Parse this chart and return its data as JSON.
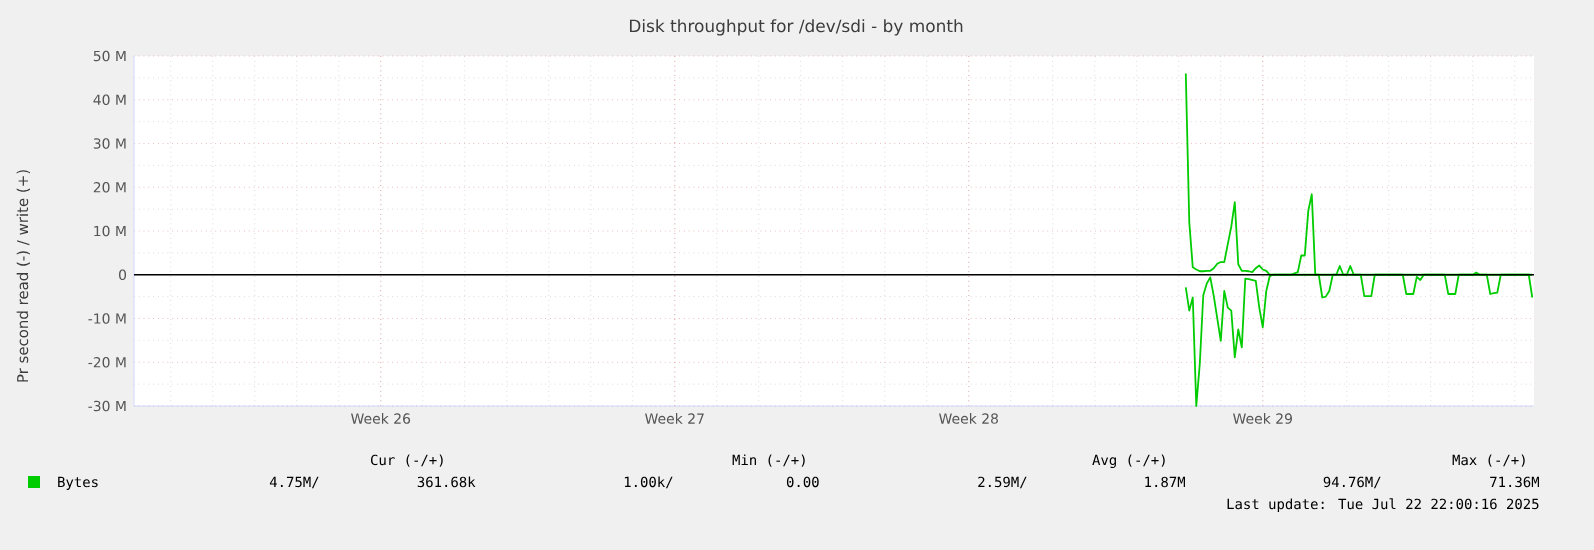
{
  "chart_data": {
    "type": "line",
    "title": "Disk throughput for /dev/sdi - by month",
    "ylabel": "Pr second read (-) / write (+)",
    "categories": [
      null,
      null,
      null,
      null,
      null,
      null,
      null,
      null,
      null,
      null,
      null,
      null,
      null,
      null,
      null,
      null,
      null,
      null,
      null,
      null,
      null,
      null,
      null,
      null,
      null,
      null,
      null,
      null,
      null,
      null,
      null,
      null,
      null,
      null,
      null,
      null,
      null,
      null,
      null,
      null,
      null,
      null,
      null,
      null,
      null,
      null,
      null,
      null,
      null,
      null,
      null,
      null,
      null,
      null,
      null,
      null,
      null,
      null,
      null,
      null,
      null,
      null,
      null,
      null,
      null,
      null,
      null,
      null,
      null,
      null,
      "Week 26",
      null,
      null,
      null,
      null,
      null,
      null,
      null,
      null,
      null,
      null,
      null,
      null,
      null,
      null,
      null,
      null,
      null,
      null,
      null,
      null,
      null,
      null,
      null,
      null,
      null,
      null,
      null,
      null,
      null,
      null,
      null,
      null,
      null,
      null,
      null,
      null,
      null,
      null,
      null,
      null,
      null,
      null,
      null,
      null,
      null,
      null,
      null,
      null,
      null,
      null,
      null,
      null,
      null,
      null,
      null,
      null,
      null,
      null,
      null,
      null,
      null,
      null,
      null,
      null,
      null,
      null,
      null,
      null,
      null,
      null,
      null,
      null,
      null,
      null,
      null,
      null,
      null,
      null,
      null,
      null,
      null,
      null,
      null,
      "Week 27",
      null,
      null,
      null,
      null,
      null,
      null,
      null,
      null,
      null,
      null,
      null,
      null,
      null,
      null,
      null,
      null,
      null,
      null,
      null,
      null,
      null,
      null,
      null,
      null,
      null,
      null,
      null,
      null,
      null,
      null,
      null,
      null,
      null,
      null,
      null,
      null,
      null,
      null,
      null,
      null,
      null,
      null,
      null,
      null,
      null,
      null,
      null,
      null,
      null,
      null,
      null,
      null,
      null,
      null,
      null,
      null,
      null,
      null,
      null,
      null,
      null,
      null,
      null,
      null,
      null,
      null,
      null,
      null,
      null,
      null,
      null,
      null,
      null,
      null,
      null,
      null,
      null,
      null,
      null,
      null,
      null,
      null,
      null,
      "Week 28",
      null,
      null,
      null,
      null,
      null,
      null,
      null,
      null,
      null,
      null,
      null,
      null,
      null,
      null,
      null,
      null,
      null,
      null,
      null,
      null,
      null,
      null,
      null,
      null,
      null,
      null,
      null,
      null,
      null,
      null,
      null,
      null,
      null,
      null,
      null,
      null,
      null,
      null,
      null,
      null,
      null,
      null,
      null,
      null,
      null,
      null,
      null,
      null,
      null,
      null,
      null,
      null,
      null,
      null,
      null,
      null,
      null,
      null,
      null,
      null,
      null,
      null,
      null,
      null,
      null,
      null,
      null,
      null,
      null,
      null,
      null,
      null,
      null,
      null,
      null,
      null,
      null,
      null,
      null,
      null,
      null,
      null,
      null,
      "Week 29",
      null,
      null,
      null,
      null,
      null,
      null,
      null,
      null,
      null,
      null,
      null,
      null,
      null,
      null,
      null,
      null,
      null,
      null,
      null,
      null,
      null,
      null,
      null,
      null,
      null,
      null,
      null,
      null,
      null,
      null,
      null,
      null,
      null,
      null,
      null,
      null,
      null,
      null,
      null,
      null,
      null,
      null,
      null,
      null,
      null,
      null,
      null,
      null,
      null,
      null,
      null,
      null,
      null,
      null,
      null,
      null,
      null,
      null,
      null,
      null,
      null,
      null,
      null,
      null,
      null,
      null,
      null,
      null,
      null,
      null,
      null,
      null,
      null,
      null,
      null,
      null,
      null
    ],
    "ylim": [
      -30,
      50
    ],
    "yticks": [
      {
        "value": -30,
        "label": "-30 M"
      },
      {
        "value": -20,
        "label": "-20 M"
      },
      {
        "value": -10,
        "label": "-10 M"
      },
      0,
      {
        "value": 10,
        "label": "10 M"
      },
      {
        "value": 20,
        "label": "20 M"
      },
      {
        "value": 30,
        "label": "30 M"
      },
      {
        "value": 40,
        "label": "40 M"
      },
      {
        "value": 50,
        "label": "50 M"
      }
    ],
    "grid": true,
    "legend": "bottom left",
    "marker": "none",
    "line_style": "solid",
    "ref_lines": [
      {
        "axis": "y",
        "value": 0,
        "color": "#000000"
      }
    ],
    "series": [
      {
        "name": "Bytes",
        "color": "#00cc00",
        "values": [
          null,
          null,
          null,
          null,
          null,
          null,
          null,
          null,
          null,
          null,
          null,
          null,
          null,
          null,
          null,
          null,
          null,
          null,
          null,
          null,
          null,
          null,
          null,
          null,
          null,
          null,
          null,
          null,
          null,
          null,
          null,
          null,
          null,
          null,
          null,
          null,
          null,
          null,
          null,
          null,
          null,
          null,
          null,
          null,
          null,
          null,
          null,
          null,
          null,
          null,
          null,
          null,
          null,
          null,
          null,
          null,
          null,
          null,
          null,
          null,
          null,
          null,
          null,
          null,
          null,
          null,
          null,
          null,
          null,
          null,
          null,
          null,
          null,
          null,
          null,
          null,
          null,
          null,
          null,
          null,
          null,
          null,
          null,
          null,
          null,
          null,
          null,
          null,
          null,
          null,
          null,
          null,
          null,
          null,
          null,
          null,
          null,
          null,
          null,
          null,
          null,
          null,
          null,
          null,
          null,
          null,
          null,
          null,
          null,
          null,
          null,
          null,
          null,
          null,
          null,
          null,
          null,
          null,
          null,
          null,
          null,
          null,
          null,
          null,
          null,
          null,
          null,
          null,
          null,
          null,
          null,
          null,
          null,
          null,
          null,
          null,
          null,
          null,
          null,
          null,
          null,
          null,
          null,
          null,
          null,
          null,
          null,
          null,
          null,
          null,
          null,
          null,
          null,
          null,
          null,
          null,
          null,
          null,
          null,
          null,
          null,
          null,
          null,
          null,
          null,
          null,
          null,
          null,
          null,
          null,
          null,
          null,
          null,
          null,
          null,
          null,
          null,
          null,
          null,
          null,
          null,
          null,
          null,
          null,
          null,
          null,
          null,
          null,
          null,
          null,
          null,
          null,
          null,
          null,
          null,
          null,
          null,
          null,
          null,
          null,
          null,
          null,
          null,
          null,
          null,
          null,
          null,
          null,
          null,
          null,
          null,
          null,
          null,
          null,
          null,
          null,
          null,
          null,
          null,
          null,
          null,
          null,
          null,
          null,
          null,
          null,
          null,
          null,
          null,
          null,
          null,
          null,
          null,
          null,
          null,
          null,
          null,
          null,
          null,
          null,
          null,
          null,
          null,
          null,
          null,
          null,
          null,
          null,
          null,
          null,
          null,
          null,
          null,
          null,
          null,
          null,
          null,
          null,
          null,
          null,
          null,
          null,
          null,
          null,
          null,
          null,
          null,
          null,
          null,
          null,
          null,
          null,
          null,
          null,
          null,
          null,
          null,
          null,
          null,
          null,
          null,
          null,
          null,
          null,
          null,
          null,
          null,
          null,
          null,
          null,
          null,
          null,
          null,
          null,
          null,
          null,
          null,
          null,
          null,
          null,
          46,
          12,
          1.7,
          1.2,
          0.8,
          0.8,
          0.9,
          0.9,
          1.5,
          2.5,
          2.9,
          2.9,
          7,
          11,
          16.6,
          2.4,
          0.9,
          0.9,
          0.8,
          0.6,
          1.5,
          2.1,
          1.2,
          0.9,
          0,
          0,
          0,
          0,
          0,
          0,
          0,
          0.3,
          0.6,
          4.4,
          4.4,
          14.6,
          18.4,
          0,
          0,
          0,
          0,
          0,
          0,
          0,
          2,
          0,
          0,
          2,
          0,
          0,
          0,
          0,
          0,
          0,
          0,
          0,
          0,
          0,
          0,
          0,
          0,
          0,
          0,
          0,
          0,
          0,
          0,
          0,
          0,
          0,
          0,
          0,
          0,
          0,
          0,
          0,
          0,
          0,
          0,
          0,
          0,
          0,
          0,
          0.5,
          0,
          0,
          0,
          0,
          0,
          0,
          0,
          0,
          0,
          0,
          0,
          0,
          0,
          0,
          0,
          0
        ]
      },
      {
        "color": "#00cc00",
        "values": [
          null,
          null,
          null,
          null,
          null,
          null,
          null,
          null,
          null,
          null,
          null,
          null,
          null,
          null,
          null,
          null,
          null,
          null,
          null,
          null,
          null,
          null,
          null,
          null,
          null,
          null,
          null,
          null,
          null,
          null,
          null,
          null,
          null,
          null,
          null,
          null,
          null,
          null,
          null,
          null,
          null,
          null,
          null,
          null,
          null,
          null,
          null,
          null,
          null,
          null,
          null,
          null,
          null,
          null,
          null,
          null,
          null,
          null,
          null,
          null,
          null,
          null,
          null,
          null,
          null,
          null,
          null,
          null,
          null,
          null,
          null,
          null,
          null,
          null,
          null,
          null,
          null,
          null,
          null,
          null,
          null,
          null,
          null,
          null,
          null,
          null,
          null,
          null,
          null,
          null,
          null,
          null,
          null,
          null,
          null,
          null,
          null,
          null,
          null,
          null,
          null,
          null,
          null,
          null,
          null,
          null,
          null,
          null,
          null,
          null,
          null,
          null,
          null,
          null,
          null,
          null,
          null,
          null,
          null,
          null,
          null,
          null,
          null,
          null,
          null,
          null,
          null,
          null,
          null,
          null,
          null,
          null,
          null,
          null,
          null,
          null,
          null,
          null,
          null,
          null,
          null,
          null,
          null,
          null,
          null,
          null,
          null,
          null,
          null,
          null,
          null,
          null,
          null,
          null,
          null,
          null,
          null,
          null,
          null,
          null,
          null,
          null,
          null,
          null,
          null,
          null,
          null,
          null,
          null,
          null,
          null,
          null,
          null,
          null,
          null,
          null,
          null,
          null,
          null,
          null,
          null,
          null,
          null,
          null,
          null,
          null,
          null,
          null,
          null,
          null,
          null,
          null,
          null,
          null,
          null,
          null,
          null,
          null,
          null,
          null,
          null,
          null,
          null,
          null,
          null,
          null,
          null,
          null,
          null,
          null,
          null,
          null,
          null,
          null,
          null,
          null,
          null,
          null,
          null,
          null,
          null,
          null,
          null,
          null,
          null,
          null,
          null,
          null,
          null,
          null,
          null,
          null,
          null,
          null,
          null,
          null,
          null,
          null,
          null,
          null,
          null,
          null,
          null,
          null,
          null,
          null,
          null,
          null,
          null,
          null,
          null,
          null,
          null,
          null,
          null,
          null,
          null,
          null,
          null,
          null,
          null,
          null,
          null,
          null,
          null,
          null,
          null,
          null,
          null,
          null,
          null,
          null,
          null,
          null,
          null,
          null,
          null,
          null,
          null,
          null,
          null,
          null,
          null,
          null,
          null,
          null,
          null,
          null,
          null,
          null,
          null,
          null,
          null,
          null,
          null,
          null,
          null,
          null,
          null,
          null,
          -2.9,
          -8.2,
          -5.2,
          -30,
          -20.4,
          -4.7,
          -2,
          -0.6,
          -4.9,
          -10,
          -15.1,
          -3.7,
          -7.5,
          -8.2,
          -18.9,
          -12.5,
          -16.6,
          -0.9,
          -1,
          -1.2,
          -1.4,
          -7.5,
          -12,
          -3.7,
          -0.3,
          0,
          0,
          0,
          0,
          0,
          0,
          0,
          0,
          0,
          0,
          0,
          0,
          0,
          0,
          -5.2,
          -5,
          -3.7,
          0,
          0,
          0,
          0,
          0,
          0,
          0,
          0,
          0,
          -4.9,
          -4.9,
          -4.9,
          0,
          0,
          0,
          0,
          0,
          0,
          0,
          0,
          0,
          -4.4,
          -4.4,
          -4.4,
          -0.5,
          -1.2,
          0,
          0,
          0,
          0,
          0,
          0,
          0,
          -4.4,
          -4.4,
          -4.4,
          0,
          0,
          0,
          0,
          0,
          0,
          0,
          0,
          0,
          -4.4,
          -4.2,
          -4.1,
          0,
          0,
          0,
          0,
          0,
          0,
          0,
          0,
          0,
          -5.2
        ]
      }
    ],
    "annotations": [
      "Cur (-/+)",
      "Min (-/+)",
      "Avg (-/+)",
      "Max (-/+)",
      "4.75M/",
      "361.68k",
      "1.00k/",
      "0.00",
      "2.59M/",
      "1.87M",
      "94.76M/",
      "71.36M",
      "Last update: Tue Jul 22 22:00:16 2025"
    ]
  }
}
